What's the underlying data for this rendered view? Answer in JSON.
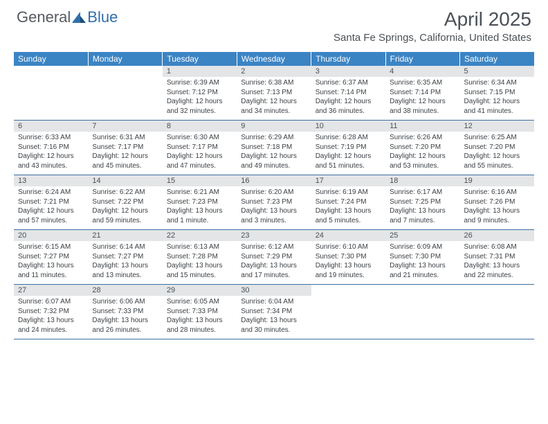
{
  "brand": {
    "part1": "General",
    "part2": "Blue"
  },
  "title": "April 2025",
  "location": "Santa Fe Springs, California, United States",
  "colors": {
    "header_bg": "#3b84c4",
    "header_text": "#ffffff",
    "daynum_bg": "#e3e5e7",
    "text": "#4a5056",
    "row_border": "#3b6fa0",
    "logo_gray": "#555a60",
    "logo_blue": "#2f6fa8"
  },
  "weekdays": [
    "Sunday",
    "Monday",
    "Tuesday",
    "Wednesday",
    "Thursday",
    "Friday",
    "Saturday"
  ],
  "cells": [
    {
      "empty": true
    },
    {
      "empty": true
    },
    {
      "day": "1",
      "sunrise": "Sunrise: 6:39 AM",
      "sunset": "Sunset: 7:12 PM",
      "daylight": "Daylight: 12 hours and 32 minutes."
    },
    {
      "day": "2",
      "sunrise": "Sunrise: 6:38 AM",
      "sunset": "Sunset: 7:13 PM",
      "daylight": "Daylight: 12 hours and 34 minutes."
    },
    {
      "day": "3",
      "sunrise": "Sunrise: 6:37 AM",
      "sunset": "Sunset: 7:14 PM",
      "daylight": "Daylight: 12 hours and 36 minutes."
    },
    {
      "day": "4",
      "sunrise": "Sunrise: 6:35 AM",
      "sunset": "Sunset: 7:14 PM",
      "daylight": "Daylight: 12 hours and 38 minutes."
    },
    {
      "day": "5",
      "sunrise": "Sunrise: 6:34 AM",
      "sunset": "Sunset: 7:15 PM",
      "daylight": "Daylight: 12 hours and 41 minutes."
    },
    {
      "day": "6",
      "sunrise": "Sunrise: 6:33 AM",
      "sunset": "Sunset: 7:16 PM",
      "daylight": "Daylight: 12 hours and 43 minutes."
    },
    {
      "day": "7",
      "sunrise": "Sunrise: 6:31 AM",
      "sunset": "Sunset: 7:17 PM",
      "daylight": "Daylight: 12 hours and 45 minutes."
    },
    {
      "day": "8",
      "sunrise": "Sunrise: 6:30 AM",
      "sunset": "Sunset: 7:17 PM",
      "daylight": "Daylight: 12 hours and 47 minutes."
    },
    {
      "day": "9",
      "sunrise": "Sunrise: 6:29 AM",
      "sunset": "Sunset: 7:18 PM",
      "daylight": "Daylight: 12 hours and 49 minutes."
    },
    {
      "day": "10",
      "sunrise": "Sunrise: 6:28 AM",
      "sunset": "Sunset: 7:19 PM",
      "daylight": "Daylight: 12 hours and 51 minutes."
    },
    {
      "day": "11",
      "sunrise": "Sunrise: 6:26 AM",
      "sunset": "Sunset: 7:20 PM",
      "daylight": "Daylight: 12 hours and 53 minutes."
    },
    {
      "day": "12",
      "sunrise": "Sunrise: 6:25 AM",
      "sunset": "Sunset: 7:20 PM",
      "daylight": "Daylight: 12 hours and 55 minutes."
    },
    {
      "day": "13",
      "sunrise": "Sunrise: 6:24 AM",
      "sunset": "Sunset: 7:21 PM",
      "daylight": "Daylight: 12 hours and 57 minutes."
    },
    {
      "day": "14",
      "sunrise": "Sunrise: 6:22 AM",
      "sunset": "Sunset: 7:22 PM",
      "daylight": "Daylight: 12 hours and 59 minutes."
    },
    {
      "day": "15",
      "sunrise": "Sunrise: 6:21 AM",
      "sunset": "Sunset: 7:23 PM",
      "daylight": "Daylight: 13 hours and 1 minute."
    },
    {
      "day": "16",
      "sunrise": "Sunrise: 6:20 AM",
      "sunset": "Sunset: 7:23 PM",
      "daylight": "Daylight: 13 hours and 3 minutes."
    },
    {
      "day": "17",
      "sunrise": "Sunrise: 6:19 AM",
      "sunset": "Sunset: 7:24 PM",
      "daylight": "Daylight: 13 hours and 5 minutes."
    },
    {
      "day": "18",
      "sunrise": "Sunrise: 6:17 AM",
      "sunset": "Sunset: 7:25 PM",
      "daylight": "Daylight: 13 hours and 7 minutes."
    },
    {
      "day": "19",
      "sunrise": "Sunrise: 6:16 AM",
      "sunset": "Sunset: 7:26 PM",
      "daylight": "Daylight: 13 hours and 9 minutes."
    },
    {
      "day": "20",
      "sunrise": "Sunrise: 6:15 AM",
      "sunset": "Sunset: 7:27 PM",
      "daylight": "Daylight: 13 hours and 11 minutes."
    },
    {
      "day": "21",
      "sunrise": "Sunrise: 6:14 AM",
      "sunset": "Sunset: 7:27 PM",
      "daylight": "Daylight: 13 hours and 13 minutes."
    },
    {
      "day": "22",
      "sunrise": "Sunrise: 6:13 AM",
      "sunset": "Sunset: 7:28 PM",
      "daylight": "Daylight: 13 hours and 15 minutes."
    },
    {
      "day": "23",
      "sunrise": "Sunrise: 6:12 AM",
      "sunset": "Sunset: 7:29 PM",
      "daylight": "Daylight: 13 hours and 17 minutes."
    },
    {
      "day": "24",
      "sunrise": "Sunrise: 6:10 AM",
      "sunset": "Sunset: 7:30 PM",
      "daylight": "Daylight: 13 hours and 19 minutes."
    },
    {
      "day": "25",
      "sunrise": "Sunrise: 6:09 AM",
      "sunset": "Sunset: 7:30 PM",
      "daylight": "Daylight: 13 hours and 21 minutes."
    },
    {
      "day": "26",
      "sunrise": "Sunrise: 6:08 AM",
      "sunset": "Sunset: 7:31 PM",
      "daylight": "Daylight: 13 hours and 22 minutes."
    },
    {
      "day": "27",
      "sunrise": "Sunrise: 6:07 AM",
      "sunset": "Sunset: 7:32 PM",
      "daylight": "Daylight: 13 hours and 24 minutes."
    },
    {
      "day": "28",
      "sunrise": "Sunrise: 6:06 AM",
      "sunset": "Sunset: 7:33 PM",
      "daylight": "Daylight: 13 hours and 26 minutes."
    },
    {
      "day": "29",
      "sunrise": "Sunrise: 6:05 AM",
      "sunset": "Sunset: 7:33 PM",
      "daylight": "Daylight: 13 hours and 28 minutes."
    },
    {
      "day": "30",
      "sunrise": "Sunrise: 6:04 AM",
      "sunset": "Sunset: 7:34 PM",
      "daylight": "Daylight: 13 hours and 30 minutes."
    },
    {
      "empty": true
    },
    {
      "empty": true
    },
    {
      "empty": true
    }
  ]
}
